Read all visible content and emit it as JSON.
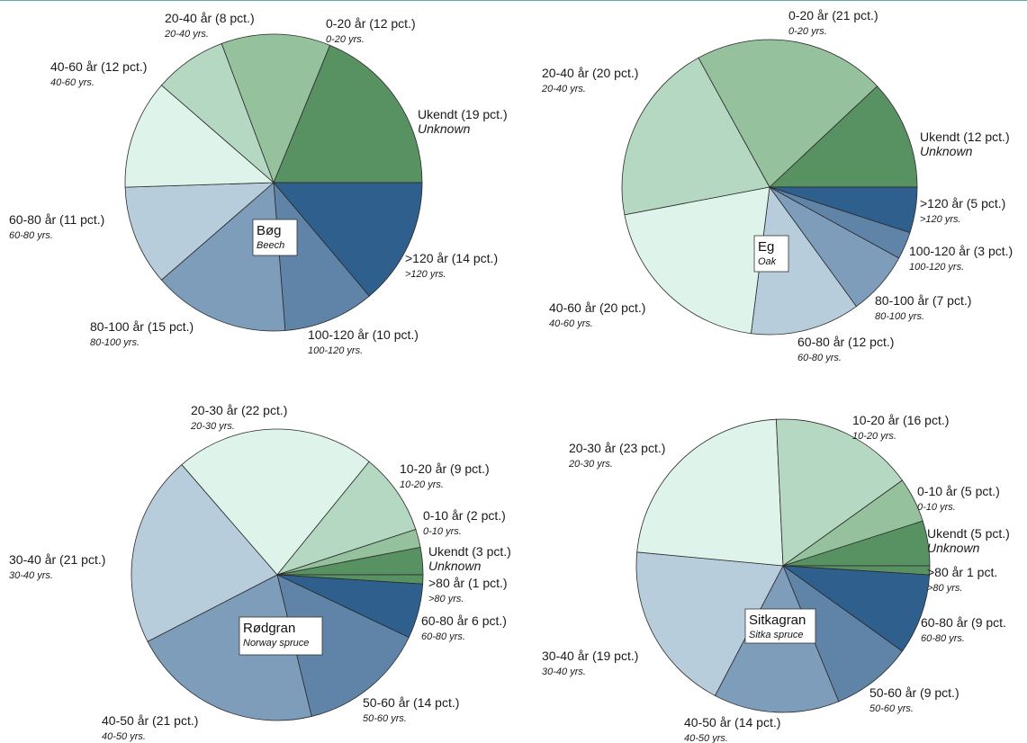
{
  "colors": {
    "top_rule": "#5fb0a0",
    "slice_stroke": "#2a2a2a",
    "unknown": "#589262",
    "g_0_20": "#96c19d",
    "g_20_40": "#b5d8c2",
    "g_40_60": "#def4ea",
    "b_60_80": "#b7cddb",
    "b_80_100": "#7d9dbb",
    "b_100_120": "#5f84a8",
    "b_gt120": "#2f5f8c"
  },
  "chart_data": [
    {
      "type": "pie",
      "species": "Bøg",
      "species_en": "Beech",
      "slices": [
        {
          "label": "Ukendt (19 pct.)",
          "sub": "Unknown",
          "value": 19,
          "color": "#589262"
        },
        {
          "label": ">120 år (14 pct.)",
          "sub": ">120 yrs.",
          "value": 14,
          "color": "#2f5f8c"
        },
        {
          "label": "100-120 år (10 pct.)",
          "sub": "100-120 yrs.",
          "value": 10,
          "color": "#5f84a8"
        },
        {
          "label": "80-100 år (15 pct.)",
          "sub": "80-100 yrs.",
          "value": 15,
          "color": "#7d9dbb"
        },
        {
          "label": "60-80 år (11 pct.)",
          "sub": "60-80 yrs.",
          "value": 11,
          "color": "#b7cddb"
        },
        {
          "label": "40-60 år (12 pct.)",
          "sub": "40-60 yrs.",
          "value": 12,
          "color": "#def4ea"
        },
        {
          "label": "20-40 år (8 pct.)",
          "sub": "20-40 yrs.",
          "value": 8,
          "color": "#b5d8c2"
        },
        {
          "label": "0-20 år (12 pct.)",
          "sub": "0-20 yrs.",
          "value": 12,
          "color": "#96c19d"
        }
      ]
    },
    {
      "type": "pie",
      "species": "Eg",
      "species_en": "Oak",
      "slices": [
        {
          "label": "Ukendt (12 pct.)",
          "sub": "Unknown",
          "value": 12,
          "color": "#589262"
        },
        {
          "label": ">120 år (5 pct.)",
          "sub": ">120 yrs.",
          "value": 5,
          "color": "#2f5f8c"
        },
        {
          "label": "100-120 år (3 pct.)",
          "sub": "100-120 yrs.",
          "value": 3,
          "color": "#5f84a8"
        },
        {
          "label": "80-100 år (7 pct.)",
          "sub": "80-100 yrs.",
          "value": 7,
          "color": "#7d9dbb"
        },
        {
          "label": "60-80 år (12 pct.)",
          "sub": "60-80 yrs.",
          "value": 12,
          "color": "#b7cddb"
        },
        {
          "label": "40-60 år (20 pct.)",
          "sub": "40-60 yrs.",
          "value": 20,
          "color": "#def4ea"
        },
        {
          "label": "20-40 år (20 pct.)",
          "sub": "20-40 yrs.",
          "value": 20,
          "color": "#b5d8c2"
        },
        {
          "label": "0-20 år (21 pct.)",
          "sub": "0-20 yrs.",
          "value": 21,
          "color": "#96c19d"
        }
      ]
    },
    {
      "type": "pie",
      "species": "Rødgran",
      "species_en": "Norway spruce",
      "slices": [
        {
          "label": "Ukendt (3 pct.)",
          "sub": "Unknown",
          "value": 3,
          "color": "#589262"
        },
        {
          "label": ">80 år (1 pct.)",
          "sub": ">80 yrs.",
          "value": 1,
          "color": "#589262"
        },
        {
          "label": "60-80 år 6 pct.)",
          "sub": "60-80 yrs.",
          "value": 6,
          "color": "#2f5f8c"
        },
        {
          "label": "50-60 år (14 pct.)",
          "sub": "50-60 yrs.",
          "value": 14,
          "color": "#5f84a8"
        },
        {
          "label": "40-50 år (21 pct.)",
          "sub": "40-50 yrs.",
          "value": 21,
          "color": "#7d9dbb"
        },
        {
          "label": "30-40 år (21 pct.)",
          "sub": "30-40 yrs.",
          "value": 21,
          "color": "#b7cddb"
        },
        {
          "label": "20-30 år (22 pct.)",
          "sub": "20-30 yrs.",
          "value": 22,
          "color": "#def4ea"
        },
        {
          "label": "10-20 år (9 pct.)",
          "sub": "10-20 yrs.",
          "value": 9,
          "color": "#b5d8c2"
        },
        {
          "label": "0-10 år (2 pct.)",
          "sub": "0-10 yrs.",
          "value": 2,
          "color": "#96c19d"
        }
      ]
    },
    {
      "type": "pie",
      "species": "Sitkagran",
      "species_en": "Sitka spruce",
      "slices": [
        {
          "label": "Ukendt (5 pct.)",
          "sub": "Unknown",
          "value": 5,
          "color": "#589262"
        },
        {
          "label": ">80 år 1 pct.",
          "sub": ">80 yrs.",
          "value": 1,
          "color": "#589262"
        },
        {
          "label": "60-80 år (9 pct.",
          "sub": "60-80 yrs.",
          "value": 9,
          "color": "#2f5f8c"
        },
        {
          "label": "50-60 år (9 pct.)",
          "sub": "50-60 yrs.",
          "value": 9,
          "color": "#5f84a8"
        },
        {
          "label": "40-50 år (14 pct.)",
          "sub": "40-50 yrs.",
          "value": 14,
          "color": "#7d9dbb"
        },
        {
          "label": "30-40 år (19 pct.)",
          "sub": "30-40 yrs.",
          "value": 19,
          "color": "#b7cddb"
        },
        {
          "label": "20-30 år (23 pct.)",
          "sub": "20-30 yrs.",
          "value": 23,
          "color": "#def4ea"
        },
        {
          "label": "10-20 år (16 pct.)",
          "sub": "10-20 yrs.",
          "value": 16,
          "color": "#b5d8c2"
        },
        {
          "label": "0-10 år (5 pct.)",
          "sub": "0-10 yrs.",
          "value": 5,
          "color": "#96c19d"
        }
      ]
    }
  ]
}
